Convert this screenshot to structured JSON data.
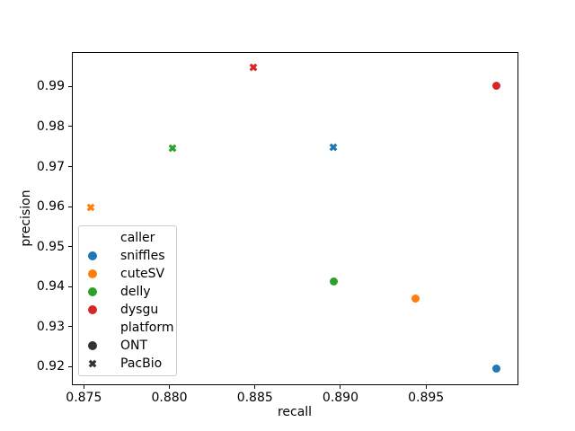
{
  "chart_data": {
    "type": "scatter",
    "title": "",
    "xlabel": "recall",
    "ylabel": "precision",
    "xlim": [
      0.8743,
      0.9004
    ],
    "ylim": [
      0.9154,
      0.9986
    ],
    "grid": false,
    "legend_position": "lower-left-inside",
    "xticks": [
      {
        "value": 0.875,
        "label": "0.875"
      },
      {
        "value": 0.88,
        "label": "0.880"
      },
      {
        "value": 0.885,
        "label": "0.885"
      },
      {
        "value": 0.89,
        "label": "0.890"
      },
      {
        "value": 0.895,
        "label": "0.895"
      }
    ],
    "yticks": [
      {
        "value": 0.92,
        "label": "0.92"
      },
      {
        "value": 0.93,
        "label": "0.93"
      },
      {
        "value": 0.94,
        "label": "0.94"
      },
      {
        "value": 0.95,
        "label": "0.95"
      },
      {
        "value": 0.96,
        "label": "0.96"
      },
      {
        "value": 0.97,
        "label": "0.97"
      },
      {
        "value": 0.98,
        "label": "0.98"
      },
      {
        "value": 0.99,
        "label": "0.99"
      }
    ],
    "palette": {
      "sniffles": "#1f77b4",
      "cuteSV": "#ff7f0e",
      "delly": "#2ca02c",
      "dysgu": "#d62728"
    },
    "markers": {
      "ONT": "circle",
      "PacBio": "x"
    },
    "points": [
      {
        "caller": "sniffles",
        "platform": "ONT",
        "recall": 0.8991,
        "precision": 0.9196
      },
      {
        "caller": "sniffles",
        "platform": "PacBio",
        "recall": 0.8896,
        "precision": 0.9748
      },
      {
        "caller": "cuteSV",
        "platform": "ONT",
        "recall": 0.8944,
        "precision": 0.9371
      },
      {
        "caller": "cuteSV",
        "platform": "PacBio",
        "recall": 0.8754,
        "precision": 0.9597
      },
      {
        "caller": "delly",
        "platform": "ONT",
        "recall": 0.8896,
        "precision": 0.9414
      },
      {
        "caller": "delly",
        "platform": "PacBio",
        "recall": 0.8802,
        "precision": 0.9747
      },
      {
        "caller": "dysgu",
        "platform": "ONT",
        "recall": 0.8991,
        "precision": 0.9901
      },
      {
        "caller": "dysgu",
        "platform": "PacBio",
        "recall": 0.8849,
        "precision": 0.9948
      }
    ],
    "legend": {
      "entries": [
        {
          "type": "header",
          "label": "caller"
        },
        {
          "type": "item",
          "label": "sniffles",
          "marker": "circle",
          "color": "#1f77b4"
        },
        {
          "type": "item",
          "label": "cuteSV",
          "marker": "circle",
          "color": "#ff7f0e"
        },
        {
          "type": "item",
          "label": "delly",
          "marker": "circle",
          "color": "#2ca02c"
        },
        {
          "type": "item",
          "label": "dysgu",
          "marker": "circle",
          "color": "#d62728"
        },
        {
          "type": "header",
          "label": "platform"
        },
        {
          "type": "item",
          "label": "ONT",
          "marker": "circle",
          "color": "#333333"
        },
        {
          "type": "item",
          "label": "PacBio",
          "marker": "x",
          "color": "#333333"
        }
      ]
    },
    "colors": {
      "spine": "#000000",
      "text": "#000000",
      "legend_border": "#cccccc",
      "background": "#ffffff"
    }
  }
}
